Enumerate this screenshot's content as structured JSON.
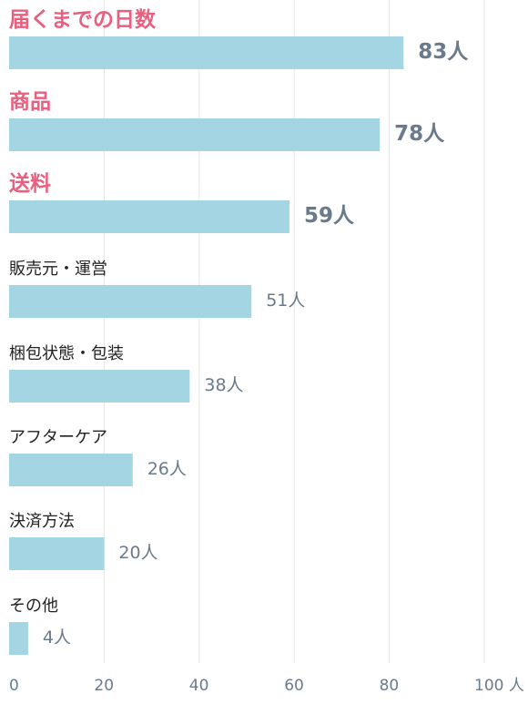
{
  "chart_data": {
    "type": "bar",
    "orientation": "horizontal",
    "categories": [
      "届くまでの日数",
      "商品",
      "送料",
      "販売元・運営",
      "梱包状態・包装",
      "アフターケア",
      "決済方法",
      "その他"
    ],
    "values": [
      83,
      78,
      59,
      51,
      38,
      26,
      20,
      4
    ],
    "value_labels": [
      "83人",
      "78人",
      "59人",
      "51人",
      "38人",
      "26人",
      "20人",
      "4人"
    ],
    "highlighted": [
      true,
      true,
      true,
      false,
      false,
      false,
      false,
      false
    ],
    "xlim": [
      0,
      100
    ],
    "xticks": [
      0,
      20,
      40,
      60,
      80,
      100
    ],
    "xtick_labels": [
      "0",
      "20",
      "40",
      "60",
      "80",
      "100 人"
    ],
    "grid": true,
    "colors": {
      "bar": "#a3d5e3",
      "highlight_label": "#e8607f",
      "label": "#222222",
      "value": "#6a7a8c",
      "grid": "#e6e6e6"
    }
  }
}
